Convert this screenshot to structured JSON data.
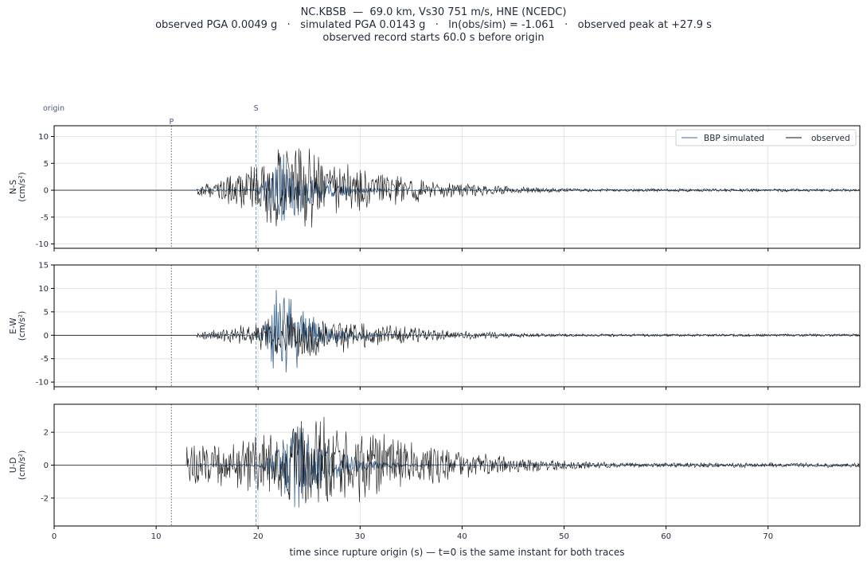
{
  "title": {
    "line1": "NC.KBSB  —  69.0 km, Vs30 751 m/s, HNE (NCEDC)",
    "line2": "observed PGA 0.0049 g   ·   simulated PGA 0.0143 g   ·   ln(obs/sim) = -1.061   ·   observed peak at +27.9 s",
    "line3": "observed record starts 60.0 s before origin"
  },
  "markers": {
    "origin_label": "origin",
    "p_label": "P",
    "s_label": "S",
    "p_time": 11.5,
    "s_time": 19.8
  },
  "colors": {
    "simulated": "#3d6590",
    "observed": "#111111",
    "p_marker": "#666666",
    "s_marker": "#7f9ec4",
    "marker_text": "#4a5a80",
    "grid": "#e3e3e3"
  },
  "legend": {
    "simulated": "BBP simulated",
    "observed": "observed",
    "placement": "top-right of top panel"
  },
  "xlabel": "time since rupture origin (s)   —   t=0 is the same instant for both traces",
  "chart_data": [
    {
      "type": "line",
      "component": "N-S",
      "ylabel_line1": "N-S",
      "ylabel_line2": "(cm/s²)",
      "xlim": [
        0,
        79
      ],
      "ylim": [
        -10.8,
        12
      ],
      "x_ticks": [
        0,
        10,
        20,
        30,
        40,
        50,
        60,
        70
      ],
      "y_ticks": [
        -10,
        -5,
        0,
        5,
        10
      ],
      "grid": true,
      "series": [
        {
          "name": "BBP simulated",
          "key": "sim",
          "onset": 19.8,
          "peak": 9.5,
          "peak_time": 21.8,
          "decay": 3.2,
          "tail": 0.15,
          "noise_onset": 14,
          "noise_amp": 0.3,
          "seed": 11
        },
        {
          "name": "observed",
          "key": "obs",
          "onset": 14.0,
          "peak": 10.0,
          "peak_time": 23.0,
          "decay": 8.5,
          "tail": 0.3,
          "noise_onset": 14,
          "noise_amp": 1.0,
          "seed": 23
        }
      ]
    },
    {
      "type": "line",
      "component": "E-W",
      "ylabel_line1": "E-W",
      "ylabel_line2": "(cm/s²)",
      "xlim": [
        0,
        79
      ],
      "ylim": [
        -11,
        15
      ],
      "x_ticks": [
        0,
        10,
        20,
        30,
        40,
        50,
        60,
        70
      ],
      "y_ticks": [
        -10,
        -5,
        0,
        5,
        10,
        15
      ],
      "grid": true,
      "series": [
        {
          "name": "BBP simulated",
          "key": "sim",
          "onset": 19.8,
          "peak": 14.0,
          "peak_time": 22.0,
          "decay": 3.0,
          "tail": 0.15,
          "noise_onset": 14,
          "noise_amp": 0.3,
          "seed": 37
        },
        {
          "name": "observed",
          "key": "obs",
          "onset": 14.0,
          "peak": 6.0,
          "peak_time": 24.0,
          "decay": 9.0,
          "tail": 0.3,
          "noise_onset": 14,
          "noise_amp": 0.8,
          "seed": 41
        }
      ]
    },
    {
      "type": "line",
      "component": "U-D",
      "ylabel_line1": "U-D",
      "ylabel_line2": "(cm/s²)",
      "xlim": [
        0,
        79
      ],
      "ylim": [
        -3.7,
        3.7
      ],
      "x_ticks": [
        0,
        10,
        20,
        30,
        40,
        50,
        60,
        70
      ],
      "y_ticks": [
        -2,
        0,
        2
      ],
      "grid": true,
      "series": [
        {
          "name": "BBP simulated",
          "key": "sim",
          "onset": 19.8,
          "peak": 3.2,
          "peak_time": 23.5,
          "decay": 3.5,
          "tail": 0.05,
          "noise_onset": 14,
          "noise_amp": 0.1,
          "seed": 53
        },
        {
          "name": "observed",
          "key": "obs",
          "onset": 13.0,
          "peak": 3.4,
          "peak_time": 26.5,
          "decay": 10.0,
          "tail": 0.15,
          "noise_onset": 13,
          "noise_amp": 1.2,
          "seed": 67
        }
      ]
    }
  ]
}
